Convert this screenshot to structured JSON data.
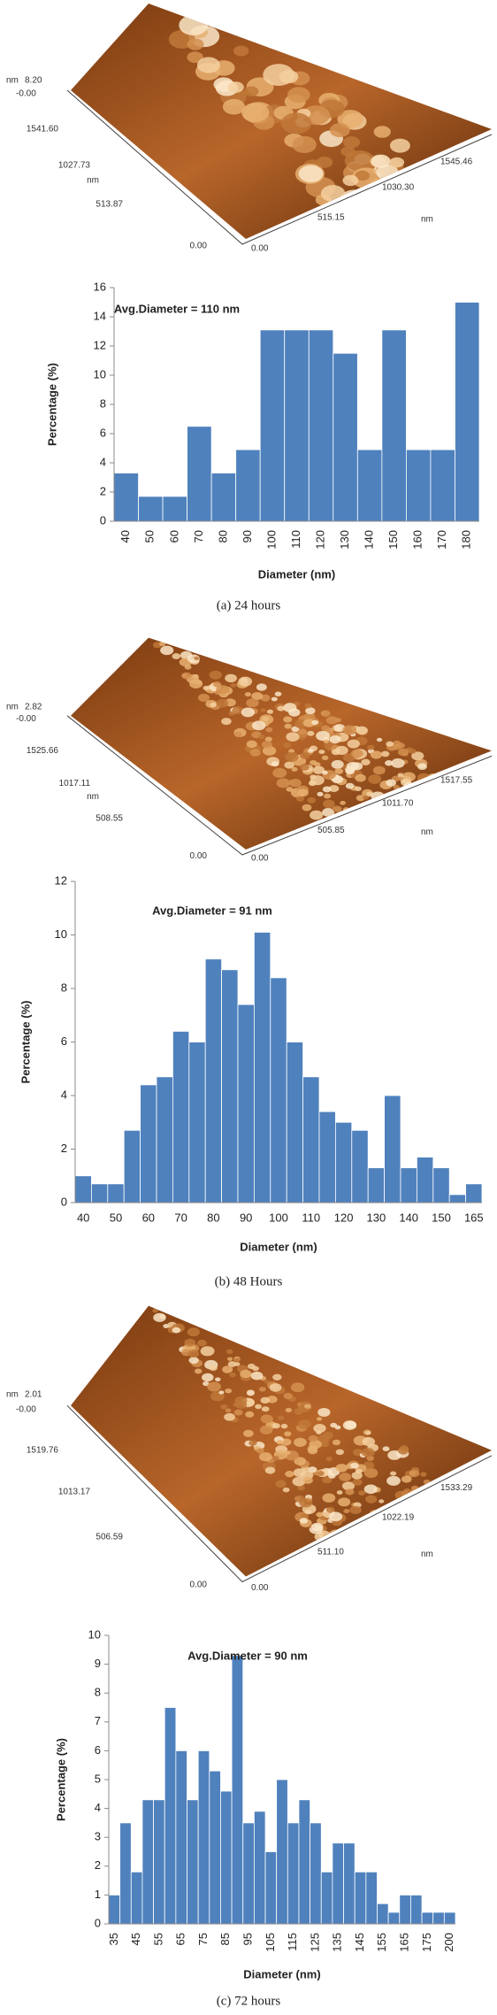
{
  "chart_data": [
    {
      "type": "bar",
      "annotation": "Avg.Diameter = 110 nm",
      "x_label": "Diameter (nm)",
      "y_label": "Percentage (%)",
      "color": "#4f81bd",
      "categories": [
        "40",
        "50",
        "60",
        "70",
        "80",
        "90",
        "100",
        "110",
        "120",
        "130",
        "140",
        "150",
        "160",
        "170",
        "180"
      ],
      "values": [
        3.3,
        1.7,
        1.7,
        6.5,
        3.3,
        4.9,
        13.1,
        13.1,
        13.1,
        11.5,
        4.9,
        13.1,
        4.9,
        4.9,
        15.0
      ],
      "ylim": [
        0,
        16
      ],
      "yticks": [
        0,
        2,
        4,
        6,
        8,
        10,
        12,
        14,
        16
      ]
    },
    {
      "type": "bar",
      "annotation": "Avg.Diameter = 91 nm",
      "x_label": "Diameter (nm)",
      "y_label": "Percentage (%)",
      "color": "#4f81bd",
      "categories": [
        "40",
        null,
        "50",
        null,
        "60",
        null,
        "70",
        null,
        "80",
        null,
        "90",
        null,
        "100",
        null,
        "110",
        null,
        "120",
        null,
        "130",
        null,
        "140",
        null,
        "150",
        null,
        "165"
      ],
      "values": [
        1.0,
        0.7,
        0.7,
        2.7,
        4.4,
        4.7,
        6.4,
        6.0,
        9.1,
        8.7,
        7.4,
        10.1,
        8.4,
        6.0,
        4.7,
        3.4,
        3.0,
        2.7,
        1.3,
        4.0,
        1.3,
        1.7,
        1.3,
        0.3,
        0.7
      ],
      "ylim": [
        0,
        12
      ],
      "yticks": [
        0,
        2,
        4,
        6,
        8,
        10,
        12
      ]
    },
    {
      "type": "bar",
      "annotation": "Avg.Diameter = 90 nm",
      "x_label": "Diameter (nm)",
      "y_label": "Percentage (%)",
      "color": "#4f81bd",
      "categories": [
        "35",
        null,
        "45",
        null,
        "55",
        null,
        "65",
        null,
        "75",
        null,
        "85",
        null,
        "95",
        null,
        "105",
        null,
        "115",
        null,
        "125",
        null,
        "135",
        null,
        "145",
        null,
        "155",
        null,
        "165",
        null,
        "175",
        null,
        "200"
      ],
      "values": [
        1.0,
        3.5,
        1.8,
        4.3,
        4.3,
        7.5,
        6.0,
        4.3,
        6.0,
        5.3,
        4.6,
        9.3,
        3.5,
        3.9,
        2.5,
        5.0,
        3.5,
        4.3,
        3.5,
        1.8,
        2.8,
        2.8,
        1.8,
        1.8,
        0.7,
        0.4,
        1.0,
        1.0,
        0.4,
        0.4,
        0.4
      ],
      "ylim": [
        0,
        10
      ],
      "yticks": [
        0,
        1,
        2,
        3,
        4,
        5,
        6,
        7,
        8,
        9,
        10
      ]
    }
  ],
  "panels": [
    {
      "caption": "(a) 24 hours",
      "afm_labels": [
        "nm",
        "8.20",
        "-0.00",
        "1541.60",
        "1027.73",
        "nm",
        "513.87",
        "0.00",
        "0.00",
        "515.15",
        "1030.30",
        "1545.46",
        "nm"
      ]
    },
    {
      "caption": "(b) 48 Hours",
      "afm_labels": [
        "nm",
        "2.82",
        "-0.00",
        "1525.66",
        "1017.11",
        "nm",
        "508.55",
        "0.00",
        "0.00",
        "505.85",
        "1011.70",
        "1517.55",
        "nm"
      ]
    },
    {
      "caption": "(c) 72 hours",
      "afm_labels": [
        "nm",
        "2.01",
        "-0.00",
        "1519.76",
        "1013.17",
        "506.59",
        "0.00",
        "0.00",
        "511.10",
        "1022.19",
        "1533.29",
        "nm"
      ]
    }
  ]
}
